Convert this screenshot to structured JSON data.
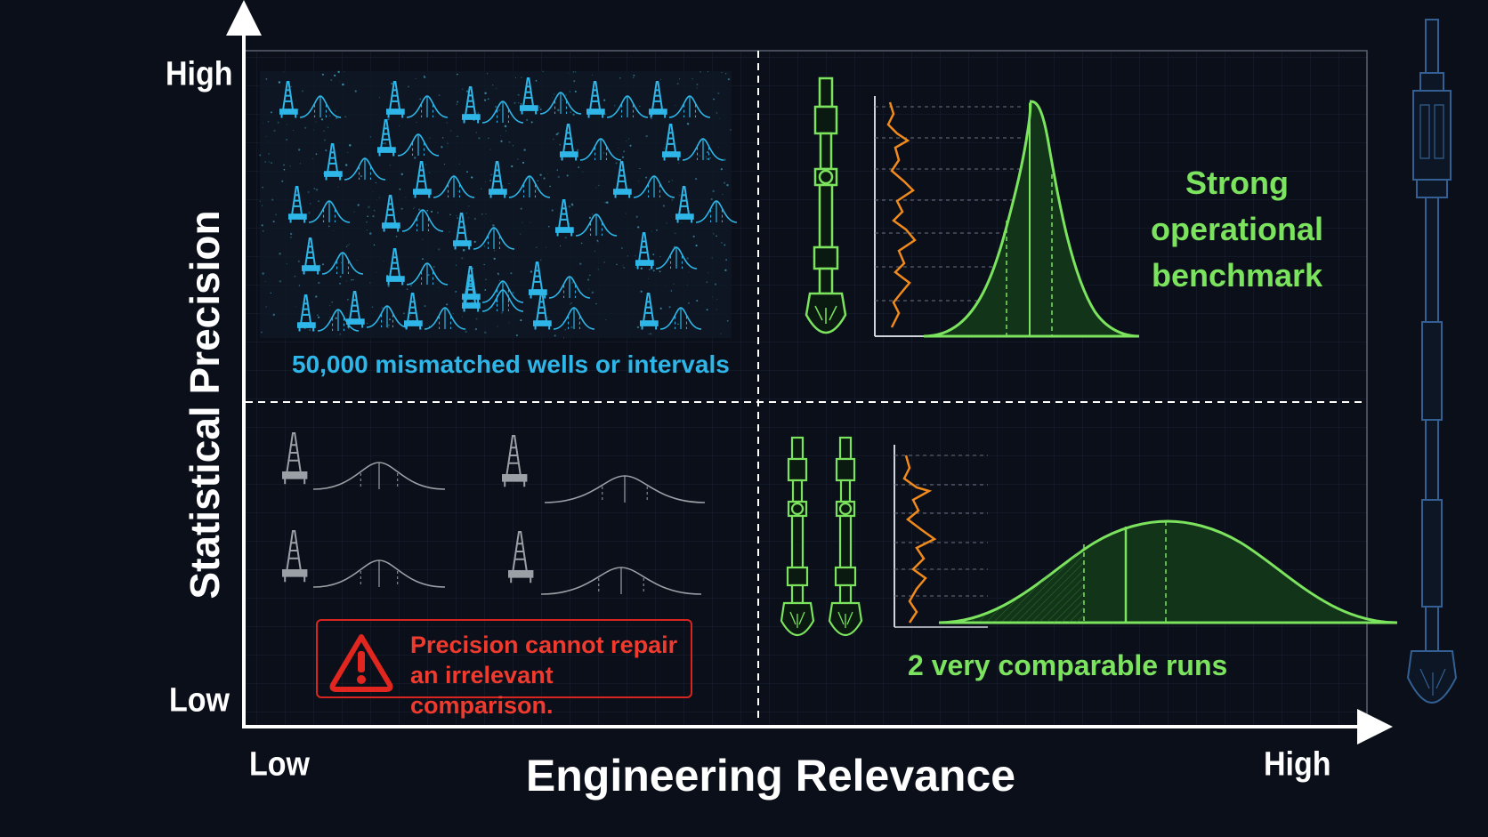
{
  "axes": {
    "y_title": "Statistical Precision",
    "x_title": "Engineering Relevance",
    "y_high": "High",
    "y_low": "Low",
    "x_low": "Low",
    "x_high": "High"
  },
  "quadrants": {
    "top_left": {
      "caption": "50,000 mismatched wells or intervals"
    },
    "top_right": {
      "caption": "Strong operational benchmark"
    },
    "bottom_left": {
      "warning": "Precision cannot repair an irrelevant comparison.",
      "icon": "warning-triangle-icon"
    },
    "bottom_right": {
      "caption": "2 very comparable runs"
    }
  },
  "colors": {
    "background": "#0b0f19",
    "cyan": "#2fb6e8",
    "green": "#7ce35f",
    "orange": "#f08a1c",
    "red": "#d9251f",
    "grey": "#9aa0a6"
  }
}
